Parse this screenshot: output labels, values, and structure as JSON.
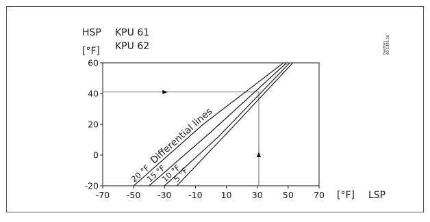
{
  "chart_data": {
    "type": "line",
    "header": {
      "y_title": "HSP",
      "y_unit": "[°F]",
      "models": [
        "KPU 61",
        "KPU 62"
      ]
    },
    "xlabel": "LSP",
    "xunit": "[°F]",
    "xlim": [
      -70,
      70
    ],
    "ylim": [
      -20,
      60
    ],
    "x_ticks": [
      -70,
      -50,
      -30,
      -10,
      10,
      30,
      50,
      70
    ],
    "y_ticks": [
      -20,
      0,
      20,
      40,
      60
    ],
    "x_tick_labels": [
      "-70",
      "-50",
      "-30",
      "-10",
      "10",
      "30",
      "50",
      "70"
    ],
    "y_tick_labels": [
      "-20",
      "0",
      "20",
      "40",
      "60"
    ],
    "annotation": "Differential lines",
    "series": [
      {
        "name": "20 °F",
        "points": [
          [
            -50,
            -20
          ],
          [
            -5,
            20
          ],
          [
            47,
            60
          ]
        ]
      },
      {
        "name": "15 °F",
        "points": [
          [
            -40,
            -20
          ],
          [
            0,
            15
          ],
          [
            49,
            60
          ]
        ]
      },
      {
        "name": "10 °F",
        "points": [
          [
            -30,
            -20
          ],
          [
            5,
            12
          ],
          [
            51,
            60
          ]
        ]
      },
      {
        "name": "5 °F",
        "points": [
          [
            -22,
            -20
          ],
          [
            13,
            17
          ],
          [
            53,
            60
          ]
        ]
      }
    ],
    "example": {
      "lsp": 31,
      "hsp": 41
    },
    "stamp": [
      "Danfoss",
      "60-1355.10"
    ]
  }
}
